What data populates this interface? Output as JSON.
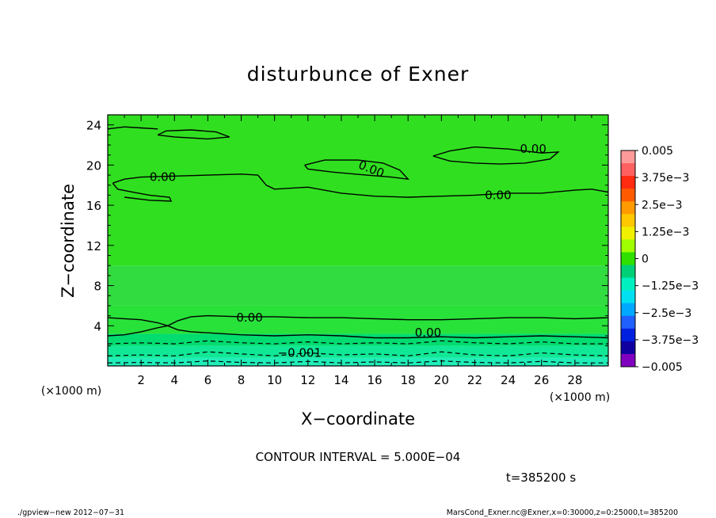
{
  "chart_data": {
    "type": "heatmap",
    "title": "disturbunce of Exner",
    "xlabel": "X−coordinate",
    "ylabel": "Z−coordinate",
    "x_unit_left": "(×1000 m)",
    "x_unit_right": "(×1000 m)",
    "xlim": [
      0,
      30
    ],
    "ylim": [
      0,
      25
    ],
    "xticks": [
      2,
      4,
      6,
      8,
      10,
      12,
      14,
      16,
      18,
      20,
      22,
      24,
      26,
      28
    ],
    "xtick_labels": [
      "2",
      "4",
      "6",
      "8",
      "10",
      "12",
      "14",
      "16",
      "18",
      "20",
      "22",
      "24",
      "26",
      "28"
    ],
    "yticks": [
      4,
      8,
      12,
      16,
      20,
      24
    ],
    "ytick_labels": [
      "4",
      "8",
      "12",
      "16",
      "20",
      "24"
    ],
    "contour_interval_label": "CONTOUR INTERVAL = 5.000E−04",
    "time_label": "t=385200 s",
    "colorbar": {
      "labels": [
        "0.005",
        "3.75e−3",
        "2.5e−3",
        "1.25e−3",
        "0",
        "−1.25e−3",
        "−2.5e−3",
        "−3.75e−3",
        "−0.005"
      ],
      "colors": [
        "#ff9a9a",
        "#ff6060",
        "#ff2a10",
        "#ff5a00",
        "#ff9a00",
        "#ffc800",
        "#f0f000",
        "#a0ff00",
        "#30e000",
        "#00d078",
        "#00f0c0",
        "#00e0f0",
        "#00a8ff",
        "#2060ff",
        "#0020e0",
        "#1000a0",
        "#8000c0"
      ]
    },
    "bands": [
      {
        "z": [
          0.0,
          0.8
        ],
        "color": "#20eeb8"
      },
      {
        "z": [
          0.8,
          2.0
        ],
        "color": "#10e896"
      },
      {
        "z": [
          2.0,
          3.2
        ],
        "color": "#00dc70"
      },
      {
        "z": [
          3.2,
          6.0
        ],
        "color": "#28e23a"
      },
      {
        "z": [
          6.0,
          10.0
        ],
        "color": "#30dc40"
      },
      {
        "z": [
          10.0,
          25.0
        ],
        "color": "#30e020"
      }
    ],
    "contours": [
      {
        "value": "0.00",
        "style": "solid",
        "points": [
          [
            0,
            4.8
          ],
          [
            1,
            4.7
          ],
          [
            2,
            4.6
          ],
          [
            3,
            4.3
          ],
          [
            3.6,
            4.0
          ],
          [
            4.2,
            3.6
          ],
          [
            5,
            3.4
          ],
          [
            6,
            3.3
          ],
          [
            8,
            3.1
          ],
          [
            10,
            3.0
          ],
          [
            12,
            3.1
          ],
          [
            14,
            3.0
          ],
          [
            16,
            2.8
          ],
          [
            18,
            2.8
          ],
          [
            20,
            2.9
          ],
          [
            22,
            2.8
          ],
          [
            24,
            2.9
          ],
          [
            26,
            3.0
          ],
          [
            28,
            2.9
          ],
          [
            30,
            2.8
          ]
        ]
      },
      {
        "value": "0.00",
        "style": "solid",
        "points": [
          [
            0,
            3.0
          ],
          [
            1,
            3.1
          ],
          [
            2,
            3.4
          ],
          [
            3,
            3.8
          ],
          [
            3.6,
            4.0
          ],
          [
            4.2,
            4.5
          ],
          [
            5,
            4.9
          ],
          [
            6,
            5.0
          ],
          [
            8,
            4.9
          ],
          [
            10,
            4.9
          ],
          [
            12,
            4.8
          ],
          [
            14,
            4.8
          ],
          [
            16,
            4.7
          ],
          [
            18,
            4.6
          ],
          [
            20,
            4.6
          ],
          [
            22,
            4.7
          ],
          [
            24,
            4.8
          ],
          [
            26,
            4.8
          ],
          [
            28,
            4.7
          ],
          [
            30,
            4.8
          ]
        ]
      },
      {
        "value": "",
        "style": "dashed",
        "points": [
          [
            0,
            2.2
          ],
          [
            2,
            2.3
          ],
          [
            4,
            2.2
          ],
          [
            6,
            2.5
          ],
          [
            8,
            2.3
          ],
          [
            10,
            2.2
          ],
          [
            12,
            2.4
          ],
          [
            14,
            2.2
          ],
          [
            16,
            2.3
          ],
          [
            18,
            2.2
          ],
          [
            20,
            2.5
          ],
          [
            22,
            2.3
          ],
          [
            24,
            2.2
          ],
          [
            26,
            2.4
          ],
          [
            28,
            2.2
          ],
          [
            30,
            2.2
          ]
        ]
      },
      {
        "value": "−0.001",
        "style": "dashed",
        "points": [
          [
            0,
            1.0
          ],
          [
            2,
            1.1
          ],
          [
            4,
            1.0
          ],
          [
            6,
            1.4
          ],
          [
            8,
            1.2
          ],
          [
            10,
            1.0
          ],
          [
            12,
            1.3
          ],
          [
            14,
            1.1
          ],
          [
            16,
            1.2
          ],
          [
            18,
            1.0
          ],
          [
            20,
            1.4
          ],
          [
            22,
            1.1
          ],
          [
            24,
            1.0
          ],
          [
            26,
            1.3
          ],
          [
            28,
            1.1
          ],
          [
            30,
            1.0
          ]
        ]
      },
      {
        "value": "",
        "style": "dashed",
        "points": [
          [
            0,
            0.3
          ],
          [
            2,
            0.35
          ],
          [
            4,
            0.3
          ],
          [
            6,
            0.5
          ],
          [
            8,
            0.35
          ],
          [
            10,
            0.3
          ],
          [
            12,
            0.45
          ],
          [
            14,
            0.3
          ],
          [
            16,
            0.4
          ],
          [
            18,
            0.3
          ],
          [
            20,
            0.5
          ],
          [
            22,
            0.35
          ],
          [
            24,
            0.3
          ],
          [
            26,
            0.45
          ],
          [
            28,
            0.3
          ],
          [
            30,
            0.3
          ]
        ]
      },
      {
        "value": "0.00",
        "style": "solid",
        "points": [
          [
            0,
            23.6
          ],
          [
            1,
            23.8
          ],
          [
            2,
            23.7
          ],
          [
            3,
            23.6
          ]
        ]
      },
      {
        "value": "",
        "style": "solid",
        "points": [
          [
            3,
            23.0
          ],
          [
            4,
            22.8
          ],
          [
            6,
            22.6
          ],
          [
            7.3,
            22.8
          ],
          [
            6.5,
            23.3
          ],
          [
            5,
            23.5
          ],
          [
            3.5,
            23.4
          ],
          [
            3,
            23.0
          ]
        ]
      },
      {
        "value": "0.00",
        "style": "solid",
        "points": [
          [
            0.3,
            18.2
          ],
          [
            1,
            18.6
          ],
          [
            2,
            18.8
          ],
          [
            4,
            18.9
          ],
          [
            6,
            19.0
          ],
          [
            8,
            19.1
          ],
          [
            9,
            19.0
          ],
          [
            9.5,
            18.0
          ],
          [
            10,
            17.6
          ],
          [
            12,
            17.8
          ],
          [
            14,
            17.2
          ],
          [
            16,
            16.9
          ],
          [
            18,
            16.8
          ],
          [
            20,
            16.9
          ],
          [
            22,
            17.0
          ],
          [
            24,
            17.2
          ],
          [
            26,
            17.2
          ],
          [
            28,
            17.5
          ],
          [
            29,
            17.6
          ],
          [
            30,
            17.3
          ]
        ]
      },
      {
        "value": "",
        "style": "solid",
        "points": [
          [
            0.3,
            18.2
          ],
          [
            0.6,
            17.6
          ],
          [
            1.5,
            17.3
          ],
          [
            2.5,
            17.0
          ],
          [
            3.7,
            16.8
          ],
          [
            3.8,
            16.4
          ],
          [
            2.5,
            16.5
          ],
          [
            1,
            16.8
          ]
        ]
      },
      {
        "value": "0.00",
        "style": "solid",
        "points": [
          [
            11.8,
            20.0
          ],
          [
            13,
            20.5
          ],
          [
            15,
            20.5
          ],
          [
            16.5,
            20.2
          ],
          [
            17.5,
            19.5
          ],
          [
            18,
            18.6
          ],
          [
            17,
            18.8
          ],
          [
            15.5,
            19.0
          ],
          [
            13.5,
            19.3
          ],
          [
            12,
            19.6
          ],
          [
            11.8,
            20.0
          ]
        ]
      },
      {
        "value": "0.00",
        "style": "solid",
        "points": [
          [
            19.5,
            20.9
          ],
          [
            20.5,
            21.4
          ],
          [
            22,
            21.8
          ],
          [
            24,
            21.6
          ],
          [
            26,
            21.2
          ],
          [
            27,
            21.3
          ],
          [
            26.5,
            20.6
          ],
          [
            25,
            20.2
          ],
          [
            23.5,
            20.1
          ],
          [
            22,
            20.2
          ],
          [
            20.5,
            20.4
          ],
          [
            19.5,
            20.9
          ]
        ]
      }
    ],
    "contour_labels": [
      {
        "text": "0.00",
        "x": 3.3,
        "y": 18.8,
        "rot": 0
      },
      {
        "text": "0.00",
        "x": 15.8,
        "y": 19.6,
        "rot": 22
      },
      {
        "text": "0.00",
        "x": 25.5,
        "y": 21.6,
        "rot": 0
      },
      {
        "text": "0.00",
        "x": 23.4,
        "y": 17.0,
        "rot": 0
      },
      {
        "text": "0.00",
        "x": 8.5,
        "y": 4.8,
        "rot": 0
      },
      {
        "text": "0.00",
        "x": 19.2,
        "y": 3.3,
        "rot": 0
      },
      {
        "text": "−0.001",
        "x": 11.5,
        "y": 1.3,
        "rot": 0
      }
    ]
  },
  "footer": {
    "left": "./gpview−new   2012−07−31",
    "right": "MarsCond_Exner.nc@Exner,x=0:30000,z=0:25000,t=385200"
  }
}
